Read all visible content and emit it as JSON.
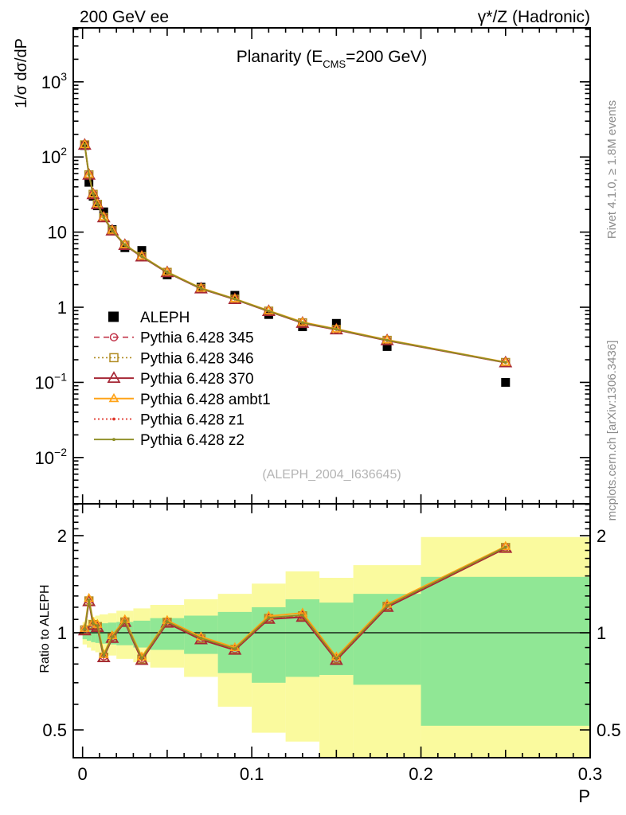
{
  "header": {
    "left": "200 GeV ee",
    "right": "γ*/Z (Hadronic)"
  },
  "title": {
    "pre": "Planarity (E",
    "sub": "CMS",
    "post": "=200 GeV)"
  },
  "axis_labels": {
    "main_y": "1/σ  dσ/dP",
    "ratio_y": "Ratio to ALEPH",
    "x": "P"
  },
  "watermark": "(ALEPH_2004_I636645)",
  "side_notes": {
    "top": "Rivet 4.1.0, ≥ 1.8M events",
    "bottom": "mcplots.cern.ch [arXiv:1306.3436]"
  },
  "chart_data": {
    "type": "line",
    "title": "Planarity (E_CMS=200 GeV)",
    "xlabel": "P",
    "legend_position": "middle-left",
    "grid": false,
    "xlim": [
      -0.0055,
      0.3
    ],
    "x_bin_edges": [
      0,
      0.0025,
      0.005,
      0.0075,
      0.01,
      0.015,
      0.02,
      0.03,
      0.04,
      0.06,
      0.08,
      0.1,
      0.12,
      0.14,
      0.16,
      0.2,
      0.3
    ],
    "x_centers": [
      0.00125,
      0.00375,
      0.00625,
      0.00875,
      0.0125,
      0.0175,
      0.025,
      0.035,
      0.05,
      0.07,
      0.09,
      0.11,
      0.13,
      0.15,
      0.18,
      0.25
    ],
    "xticks": {
      "major": [
        {
          "v": 0,
          "label": "0"
        },
        {
          "v": 0.1,
          "label": "0.1"
        },
        {
          "v": 0.2,
          "label": "0.2"
        },
        {
          "v": 0.3,
          "label": "0.3"
        }
      ],
      "minor_step": 0.01,
      "medium_step": 0.05
    },
    "main_panel": {
      "ylog": true,
      "ylabel": "1/σ dσ/dP",
      "ylim": [
        0.00242,
        5230
      ],
      "yticks": [
        {
          "v": 1000,
          "base": "10",
          "exp": "3"
        },
        {
          "v": 100,
          "base": "10",
          "exp": "2"
        },
        {
          "v": 10,
          "base": "10",
          "exp": ""
        },
        {
          "v": 1,
          "base": "1",
          "exp": ""
        },
        {
          "v": 0.1,
          "base": "10",
          "exp": "−1"
        },
        {
          "v": 0.01,
          "base": "10",
          "exp": "−2"
        }
      ],
      "data_series": {
        "name": "ALEPH",
        "color": "#000000",
        "marker": "filled-square",
        "values": [
          142,
          46,
          30,
          22.4,
          18.6,
          10.8,
          6.2,
          5.7,
          2.7,
          1.85,
          1.44,
          0.8,
          0.55,
          0.61,
          0.3,
          0.1
        ]
      }
    },
    "ratio_panel": {
      "ylog": true,
      "ylabel": "Ratio to ALEPH",
      "ylim": [
        0.41,
        2.51
      ],
      "reference_line": 1,
      "yticks": [
        {
          "v": 0.5,
          "label": "0.5"
        },
        {
          "v": 1,
          "label": "1"
        },
        {
          "v": 2,
          "label": "2"
        }
      ],
      "minor_tick_step": 0.1,
      "bands": {
        "yellow_color": "#fafa9e",
        "green_color": "#90e795",
        "yellow_hi": [
          1.08,
          1.1,
          1.12,
          1.13,
          1.14,
          1.15,
          1.17,
          1.19,
          1.22,
          1.27,
          1.32,
          1.42,
          1.55,
          1.48,
          1.62,
          1.98
        ],
        "yellow_lo": [
          0.92,
          0.9,
          0.88,
          0.87,
          0.86,
          0.85,
          0.83,
          0.81,
          0.78,
          0.73,
          0.59,
          0.49,
          0.46,
          0.41,
          0.38,
          0.38
        ],
        "green_hi": [
          1.04,
          1.05,
          1.06,
          1.065,
          1.07,
          1.075,
          1.08,
          1.09,
          1.11,
          1.13,
          1.16,
          1.2,
          1.27,
          1.24,
          1.32,
          1.49
        ],
        "green_lo": [
          0.955,
          0.945,
          0.935,
          0.93,
          0.925,
          0.92,
          0.915,
          0.9,
          0.885,
          0.86,
          0.75,
          0.7,
          0.73,
          0.74,
          0.69,
          0.515
        ]
      }
    },
    "mc_series": [
      {
        "name": "Pythia 6.428 345",
        "color": "#c2344a",
        "line": "dashed",
        "width": 1.6,
        "marker": "open-circle",
        "ratio": [
          1.02,
          1.26,
          1.065,
          1.05,
          0.845,
          0.97,
          1.085,
          0.83,
          1.08,
          0.96,
          0.89,
          1.11,
          1.13,
          0.83,
          1.21,
          1.84
        ]
      },
      {
        "name": "Pythia 6.428 346",
        "color": "#b08a20",
        "line": "dotted",
        "width": 1.6,
        "marker": "open-square",
        "ratio": [
          1.02,
          1.255,
          1.06,
          1.045,
          0.84,
          0.965,
          1.08,
          0.828,
          1.078,
          0.958,
          0.888,
          1.108,
          1.128,
          0.828,
          1.208,
          1.838
        ]
      },
      {
        "name": "Pythia 6.428 370",
        "color": "#a62836",
        "line": "solid",
        "width": 2,
        "marker": "open-triangle",
        "ratio": [
          1.015,
          1.25,
          1.055,
          1.04,
          0.838,
          0.962,
          1.078,
          0.822,
          1.072,
          0.952,
          0.884,
          1.102,
          1.118,
          0.822,
          1.2,
          1.828
        ]
      },
      {
        "name": "Pythia 6.428 ambt1",
        "color": "#ffa318",
        "line": "solid",
        "width": 2,
        "marker": "open-triangle-small",
        "ratio": [
          1.032,
          1.278,
          1.078,
          1.062,
          0.856,
          0.98,
          1.098,
          0.842,
          1.092,
          0.972,
          0.9,
          1.126,
          1.152,
          0.842,
          1.226,
          1.852
        ]
      },
      {
        "name": "Pythia 6.428 z1",
        "color": "#e03428",
        "line": "dotted",
        "width": 1.8,
        "marker": "dot",
        "ratio": [
          1.02,
          1.26,
          1.065,
          1.05,
          0.845,
          0.97,
          1.085,
          0.83,
          1.08,
          0.96,
          0.89,
          1.11,
          1.13,
          0.83,
          1.21,
          1.84
        ]
      },
      {
        "name": "Pythia 6.428 z2",
        "color": "#8e8e25",
        "line": "solid",
        "width": 1.8,
        "marker": "dot",
        "ratio": [
          1.024,
          1.264,
          1.068,
          1.052,
          0.848,
          0.97,
          1.088,
          0.833,
          1.083,
          0.962,
          0.892,
          1.114,
          1.134,
          0.833,
          1.213,
          1.843
        ]
      }
    ]
  }
}
